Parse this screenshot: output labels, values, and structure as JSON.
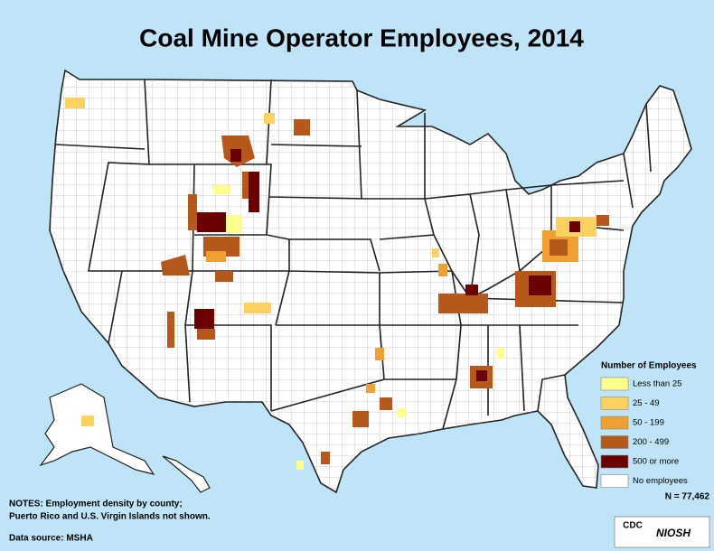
{
  "title": "Coal Mine Operator Employees, 2014",
  "legend": {
    "title": "Number of Employees",
    "items": [
      {
        "label": "Less than 25",
        "color": "#ffff8c"
      },
      {
        "label": "25 - 49",
        "color": "#fbd260"
      },
      {
        "label": "50 - 199",
        "color": "#f0a030"
      },
      {
        "label": "200 - 499",
        "color": "#b4581c"
      },
      {
        "label": "500 or more",
        "color": "#6a0000"
      },
      {
        "label": "No employees",
        "color": "#ffffff"
      }
    ]
  },
  "total": "N = 77,462",
  "notes": [
    "NOTES: Employment density by county;",
    "Puerto Rico and U.S. Virgin Islands not shown."
  ],
  "source": "Data source: MSHA",
  "logos": [
    "CDC",
    "NIOSH"
  ]
}
